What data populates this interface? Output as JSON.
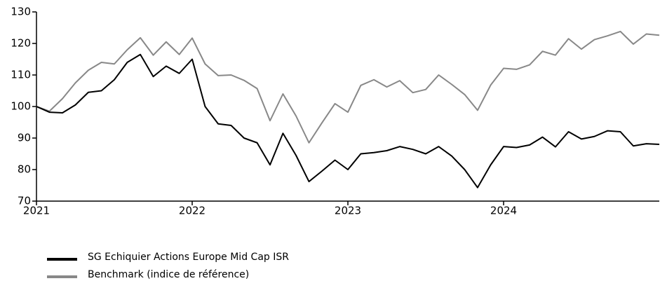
{
  "chart_data": {
    "type": "line",
    "x": [
      2021,
      2021.083,
      2021.167,
      2021.25,
      2021.333,
      2021.417,
      2021.5,
      2021.583,
      2021.667,
      2021.75,
      2021.833,
      2021.917,
      2022,
      2022.083,
      2022.167,
      2022.25,
      2022.333,
      2022.417,
      2022.5,
      2022.583,
      2022.667,
      2022.75,
      2022.833,
      2022.917,
      2023,
      2023.083,
      2023.167,
      2023.25,
      2023.333,
      2023.417,
      2023.5,
      2023.583,
      2023.667,
      2023.75,
      2023.833,
      2023.917,
      2024,
      2024.083,
      2024.167,
      2024.25,
      2024.333,
      2024.417,
      2024.5,
      2024.583,
      2024.667,
      2024.75,
      2024.833,
      2024.917,
      2025
    ],
    "series": [
      {
        "name": "SG Echiquier Actions Europe Mid Cap ISR",
        "color": "#000000",
        "values": [
          100,
          98.2,
          98,
          100.5,
          104.5,
          105,
          108.5,
          114,
          116.5,
          109.5,
          112.8,
          110.5,
          115,
          100,
          94.5,
          94,
          90,
          88.5,
          81.5,
          91.5,
          84.5,
          76.2,
          79.5,
          83,
          80,
          85,
          85.4,
          86,
          87.3,
          86.4,
          85,
          87.3,
          84.3,
          80,
          74.3,
          81.5,
          87.3,
          87,
          87.8,
          90.3,
          87.2,
          92,
          89.7,
          90.5,
          92.3,
          92,
          87.5,
          88.2,
          88
        ]
      },
      {
        "name": "Benchmark (indice de référence)",
        "color": "#888888",
        "values": [
          100,
          98.5,
          102.5,
          107.5,
          111.5,
          114,
          113.5,
          118,
          121.8,
          116.3,
          120.5,
          116.5,
          121.7,
          113.5,
          109.8,
          110,
          108.3,
          105.7,
          95.5,
          104,
          97,
          88.5,
          94.8,
          100.9,
          98.2,
          106.7,
          108.5,
          106.2,
          108.2,
          104.4,
          105.4,
          110,
          107,
          103.8,
          98.8,
          106.8,
          112.1,
          111.8,
          113.2,
          117.5,
          116.3,
          121.5,
          118.2,
          121.2,
          122.4,
          123.8,
          119.8,
          123,
          122.6
        ]
      }
    ],
    "xlim": [
      2021,
      2025
    ],
    "xticks": [
      2021,
      2022,
      2023,
      2024
    ],
    "ylim": [
      70,
      130
    ],
    "yticks": [
      70,
      80,
      90,
      100,
      110,
      120,
      130
    ],
    "grid": false,
    "legend": "bottom-left"
  }
}
